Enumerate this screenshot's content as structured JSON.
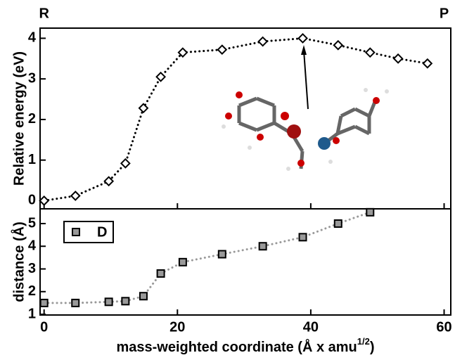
{
  "chart_data": [
    {
      "type": "line",
      "ylabel": "Relative energy (eV)",
      "annotations": [
        "R",
        "P"
      ],
      "x": [
        0,
        4.7,
        9.7,
        12.2,
        14.9,
        17.5,
        20.8,
        26.7,
        32.8,
        38.8,
        44.1,
        48.9,
        53.1,
        57.5
      ],
      "series": [
        {
          "color": "#000000",
          "values": [
            0,
            0.12,
            0.48,
            0.92,
            2.28,
            3.05,
            3.65,
            3.72,
            3.92,
            4.0,
            3.83,
            3.65,
            3.5,
            3.38
          ]
        }
      ],
      "xlim": [
        -0.6,
        61
      ],
      "xticks": [
        0,
        20,
        40,
        60
      ],
      "ylim": [
        -0.2,
        4.25
      ],
      "yticks": [
        0,
        1,
        2,
        3,
        4
      ]
    },
    {
      "type": "line",
      "ylabel": "distance (Å)",
      "xlabel": [
        "mass-weighted coordinate (Å x amu",
        "1/2",
        ")"
      ],
      "x": [
        0,
        4.7,
        9.7,
        12.2,
        14.9,
        17.5,
        20.8,
        26.7,
        32.8,
        38.8,
        44.1,
        48.9
      ],
      "series": [
        {
          "name": "D",
          "color": "#999999",
          "values": [
            1.5,
            1.5,
            1.55,
            1.58,
            1.8,
            2.8,
            3.3,
            3.65,
            4.0,
            4.4,
            5.0,
            5.5
          ]
        }
      ],
      "xlim": [
        -0.6,
        61
      ],
      "xticks": [
        0,
        20,
        40,
        60
      ],
      "ylim": [
        0.97,
        5.65
      ],
      "yticks": [
        1,
        2,
        3,
        4,
        5
      ]
    }
  ]
}
